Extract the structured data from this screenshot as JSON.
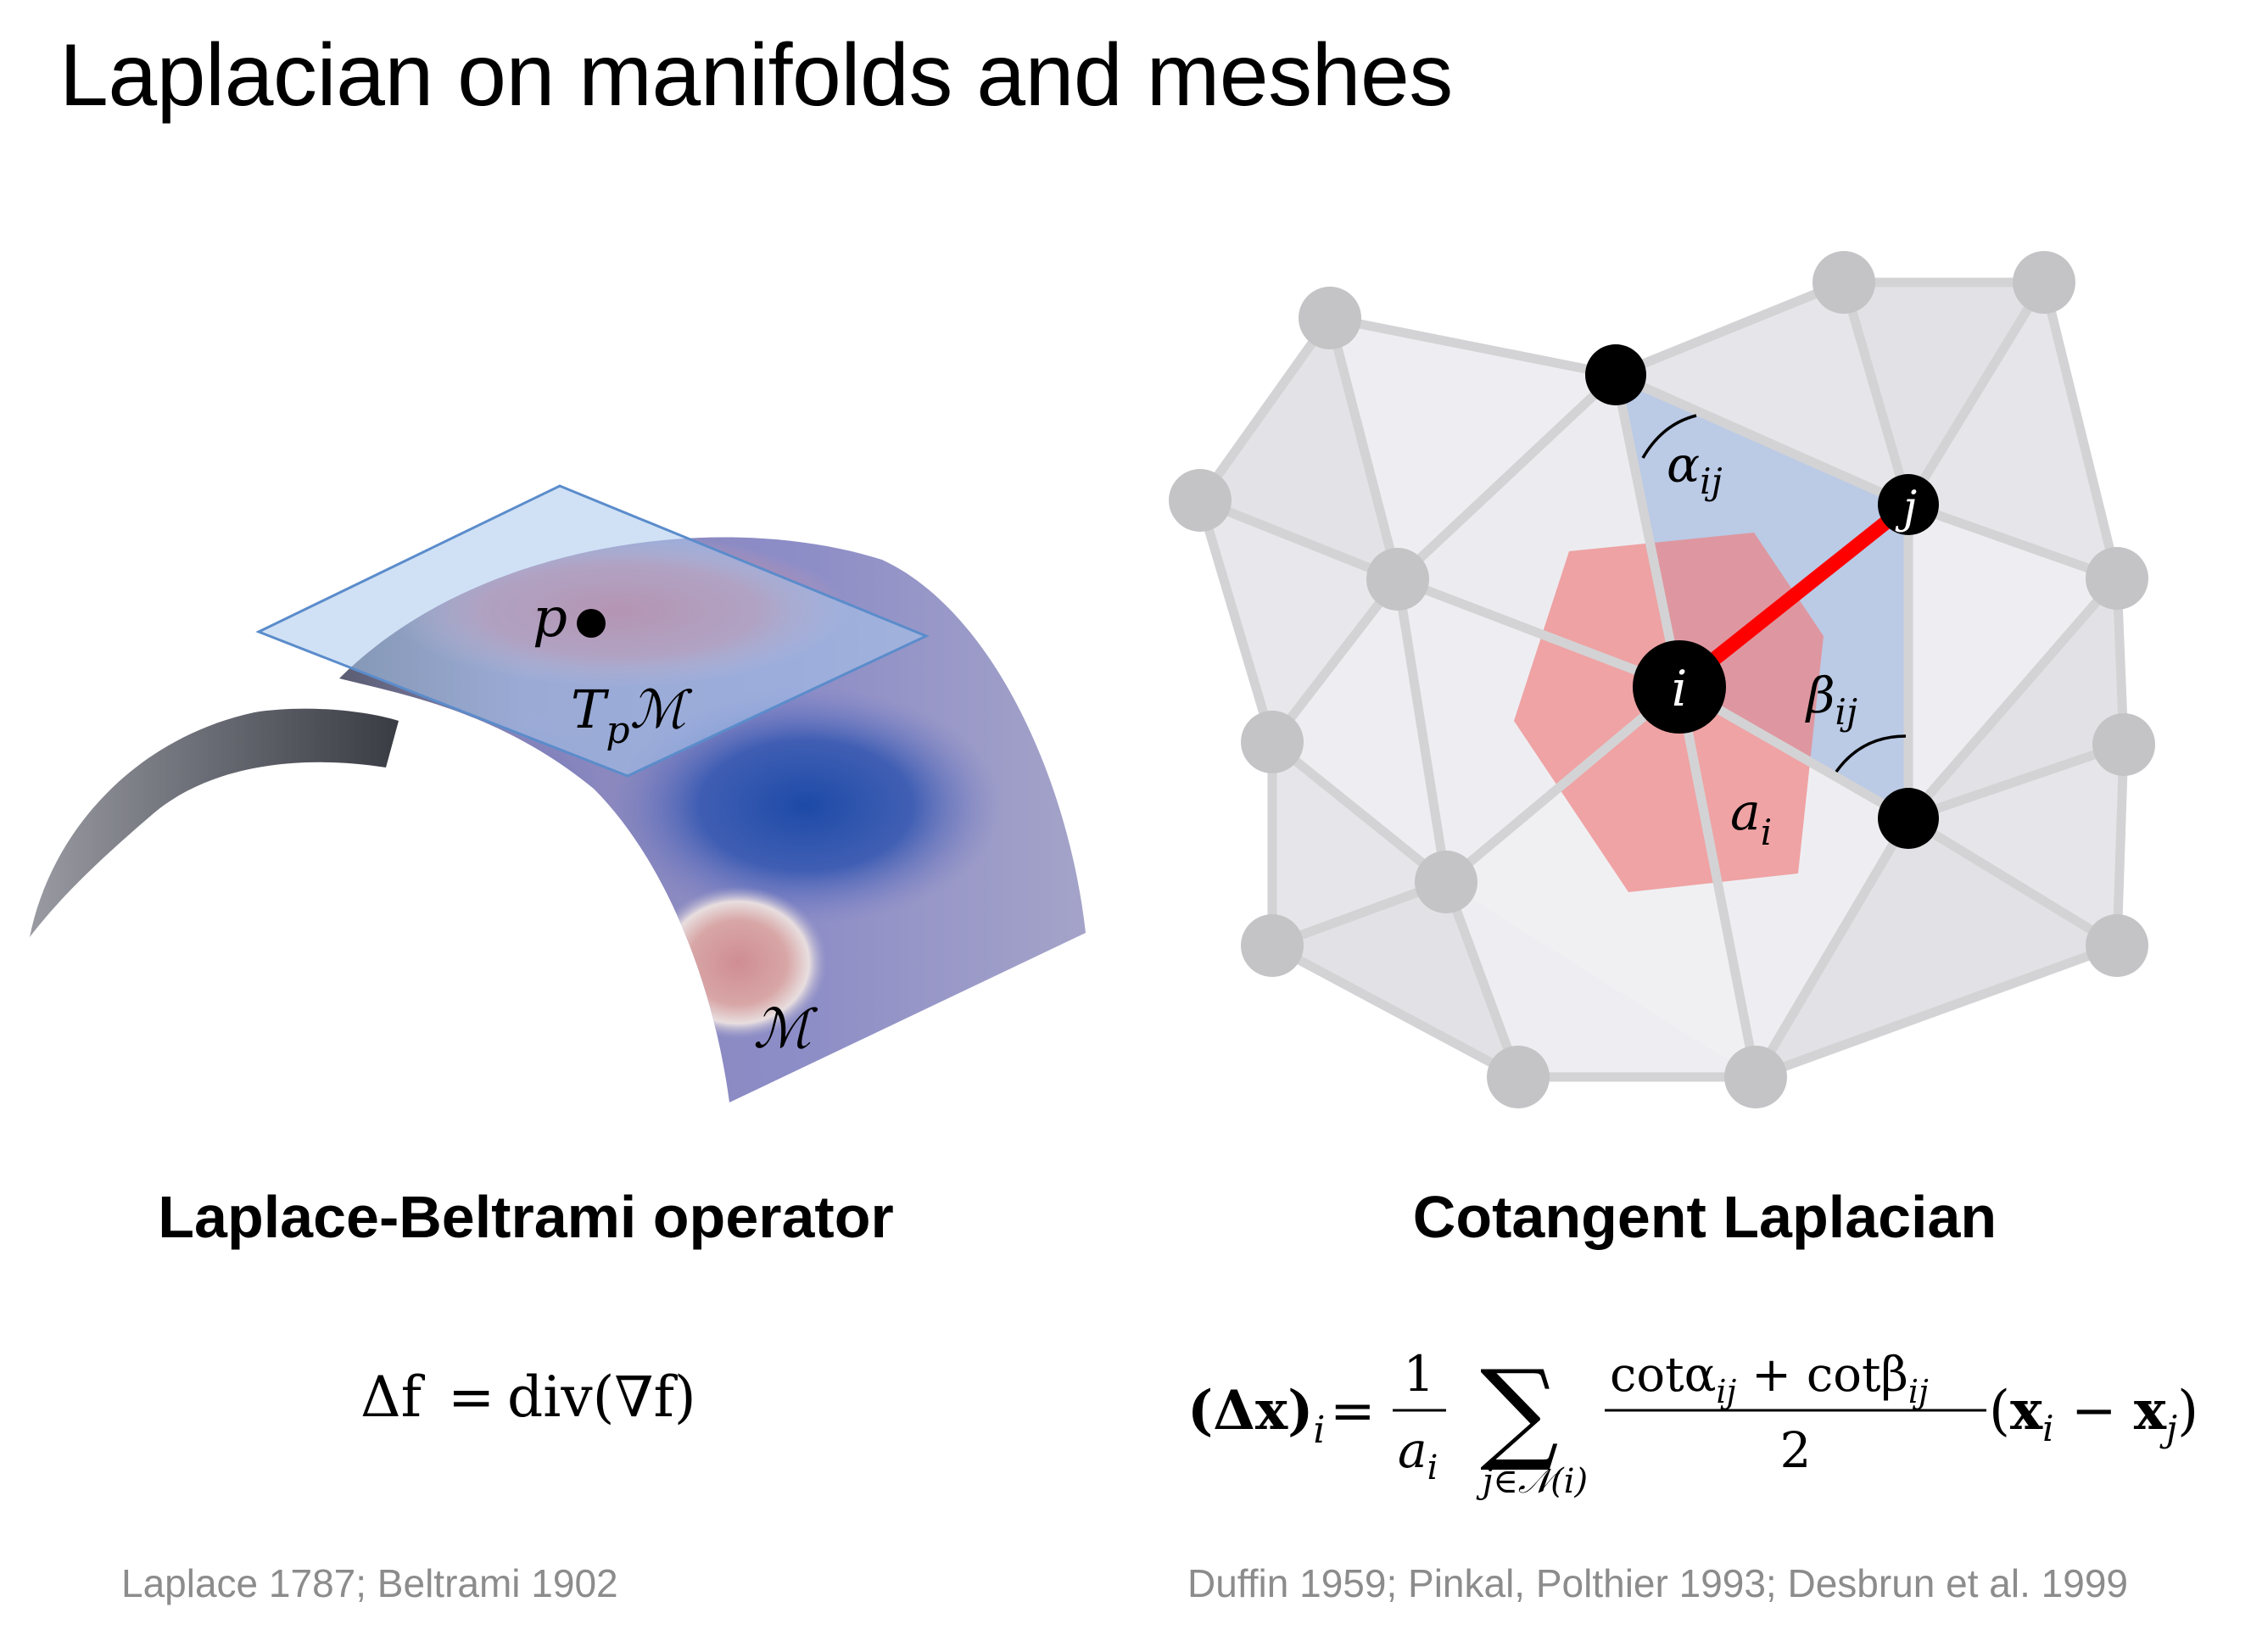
{
  "slide": {
    "title": "Laplacian on manifolds and meshes"
  },
  "left_panel": {
    "heading": "Laplace-Beltrami operator",
    "labels": {
      "point": "p",
      "tangent_plane": "T",
      "tangent_plane_sub": "p",
      "tangent_plane_manifold": "ℳ",
      "manifold": "ℳ"
    },
    "formula": {
      "lhs": "Δf",
      "equals": "=",
      "rhs": "div(∇f)"
    },
    "citation": "Laplace 1787; Beltrami 1902"
  },
  "right_panel": {
    "heading": "Cotangent Laplacian",
    "labels": {
      "vertex_i": "i",
      "vertex_j": "j",
      "alpha": "α",
      "beta": "β",
      "angle_sub": "ij",
      "area": "a",
      "area_sub": "i"
    },
    "formula": {
      "lhs": "(Δx)",
      "lhs_sub": "i",
      "equals": "=",
      "frac1_num": "1",
      "frac1_den": "a",
      "frac1_den_sub": "i",
      "sum": "∑",
      "sum_sub": "j∈𝒩(i)",
      "num_cot_a": "cotα",
      "num_plus": "+",
      "num_cot_b": "cotβ",
      "num_sub": "ij",
      "den": "2",
      "diff_open": "(",
      "diff_xi": "x",
      "diff_xi_sub": "i",
      "diff_minus": "−",
      "diff_xj": "x",
      "diff_xj_sub": "j",
      "diff_close": ")"
    },
    "citation": "Duffin 1959; Pinkal, Polthier 1993; Desbrun et al. 1999"
  },
  "colors": {
    "mesh_node": "#c4c4c6",
    "mesh_edge": "#d3d3d5",
    "face_light": "#eeeef2",
    "face_dark": "#e2e2e6",
    "blue_triangles": "#a9bde0",
    "red_hexagon": "#ef7f7f",
    "edge_ij": "#ff0000",
    "tangent_plane": "#a9c8ec",
    "surface_blue": "#1f4aa6",
    "surface_red": "#c45a70",
    "citation_gray": "#8c8c8c"
  }
}
